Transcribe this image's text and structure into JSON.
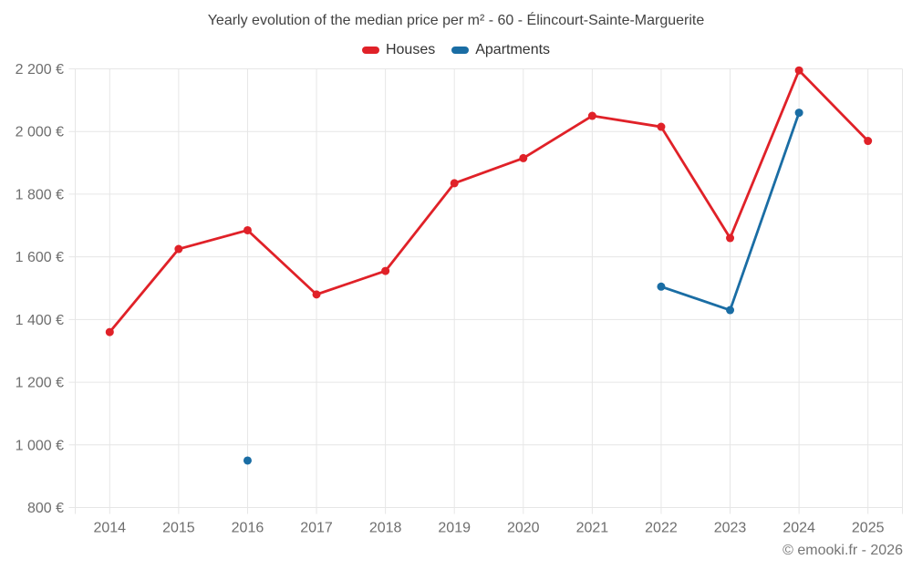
{
  "title": "Yearly evolution of the median price per m² - 60 - Élincourt-Sainte-Marguerite",
  "footer": {
    "copyright": "© emooki.fr - 2026"
  },
  "colors": {
    "houses": "#e02128",
    "apartments": "#1a6da4",
    "grid": "#e6e6e6",
    "axis_label": "#6e6e6e",
    "title_text": "#424242"
  },
  "chart_data": {
    "type": "line",
    "title": "Yearly evolution of the median price per m² - 60 - Élincourt-Sainte-Marguerite",
    "categories": [
      "2014",
      "2015",
      "2016",
      "2017",
      "2018",
      "2019",
      "2020",
      "2021",
      "2022",
      "2023",
      "2024",
      "2025"
    ],
    "series": [
      {
        "name": "Houses",
        "color": "#e02128",
        "values": [
          1360,
          1625,
          1685,
          1480,
          1555,
          1835,
          1915,
          2050,
          2015,
          1660,
          2195,
          1970
        ]
      },
      {
        "name": "Apartments",
        "color": "#1a6da4",
        "values": [
          null,
          null,
          950,
          null,
          null,
          null,
          null,
          null,
          1505,
          1430,
          2060,
          null
        ]
      }
    ],
    "xlabel": "",
    "ylabel": "",
    "ylim": [
      800,
      2200
    ],
    "ytick_step": 200,
    "yticks": [
      {
        "value": 800,
        "label": "800 €"
      },
      {
        "value": 1000,
        "label": "1 000 €"
      },
      {
        "value": 1200,
        "label": "1 200 €"
      },
      {
        "value": 1400,
        "label": "1 400 €"
      },
      {
        "value": 1600,
        "label": "1 600 €"
      },
      {
        "value": 1800,
        "label": "1 800 €"
      },
      {
        "value": 2000,
        "label": "2 000 €"
      },
      {
        "value": 2200,
        "label": "2 200 €"
      }
    ],
    "grid": true,
    "legend_position": "top",
    "currency": "€"
  }
}
